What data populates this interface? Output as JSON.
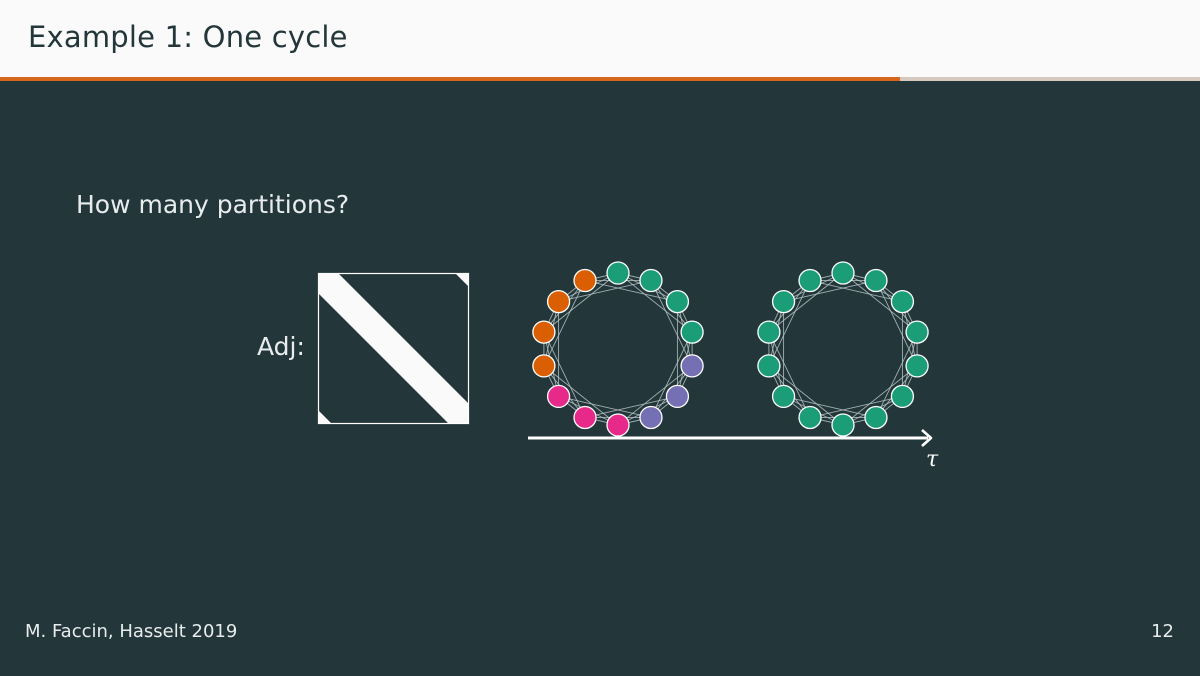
{
  "header": {
    "title": "Example 1: One cycle",
    "progress": 0.75
  },
  "main": {
    "question": "How many partitions?",
    "adj_label": "Adj:"
  },
  "diagram": {
    "axis_label": "τ",
    "node_count": 14,
    "neighbor_offsets": [
      1,
      2,
      3
    ],
    "graphs": [
      {
        "name": "partitioned-cycle-graph",
        "node_colors": [
          "#e7298a",
          "#e7298a",
          "#e7298a",
          "#d95f02",
          "#d95f02",
          "#d95f02",
          "#d95f02",
          "#1b9e77",
          "#1b9e77",
          "#1b9e77",
          "#1b9e77",
          "#7570b3",
          "#7570b3",
          "#7570b3"
        ]
      },
      {
        "name": "uniform-cycle-graph",
        "node_colors": [
          "#1b9e77",
          "#1b9e77",
          "#1b9e77",
          "#1b9e77",
          "#1b9e77",
          "#1b9e77",
          "#1b9e77",
          "#1b9e77",
          "#1b9e77",
          "#1b9e77",
          "#1b9e77",
          "#1b9e77",
          "#1b9e77",
          "#1b9e77"
        ]
      }
    ]
  },
  "colors": {
    "background": "#23373b",
    "accent": "#d5661a",
    "foreground": "#ffffff"
  },
  "footer": {
    "author": "M. Faccin, Hasselt 2019",
    "page_number": "12"
  }
}
